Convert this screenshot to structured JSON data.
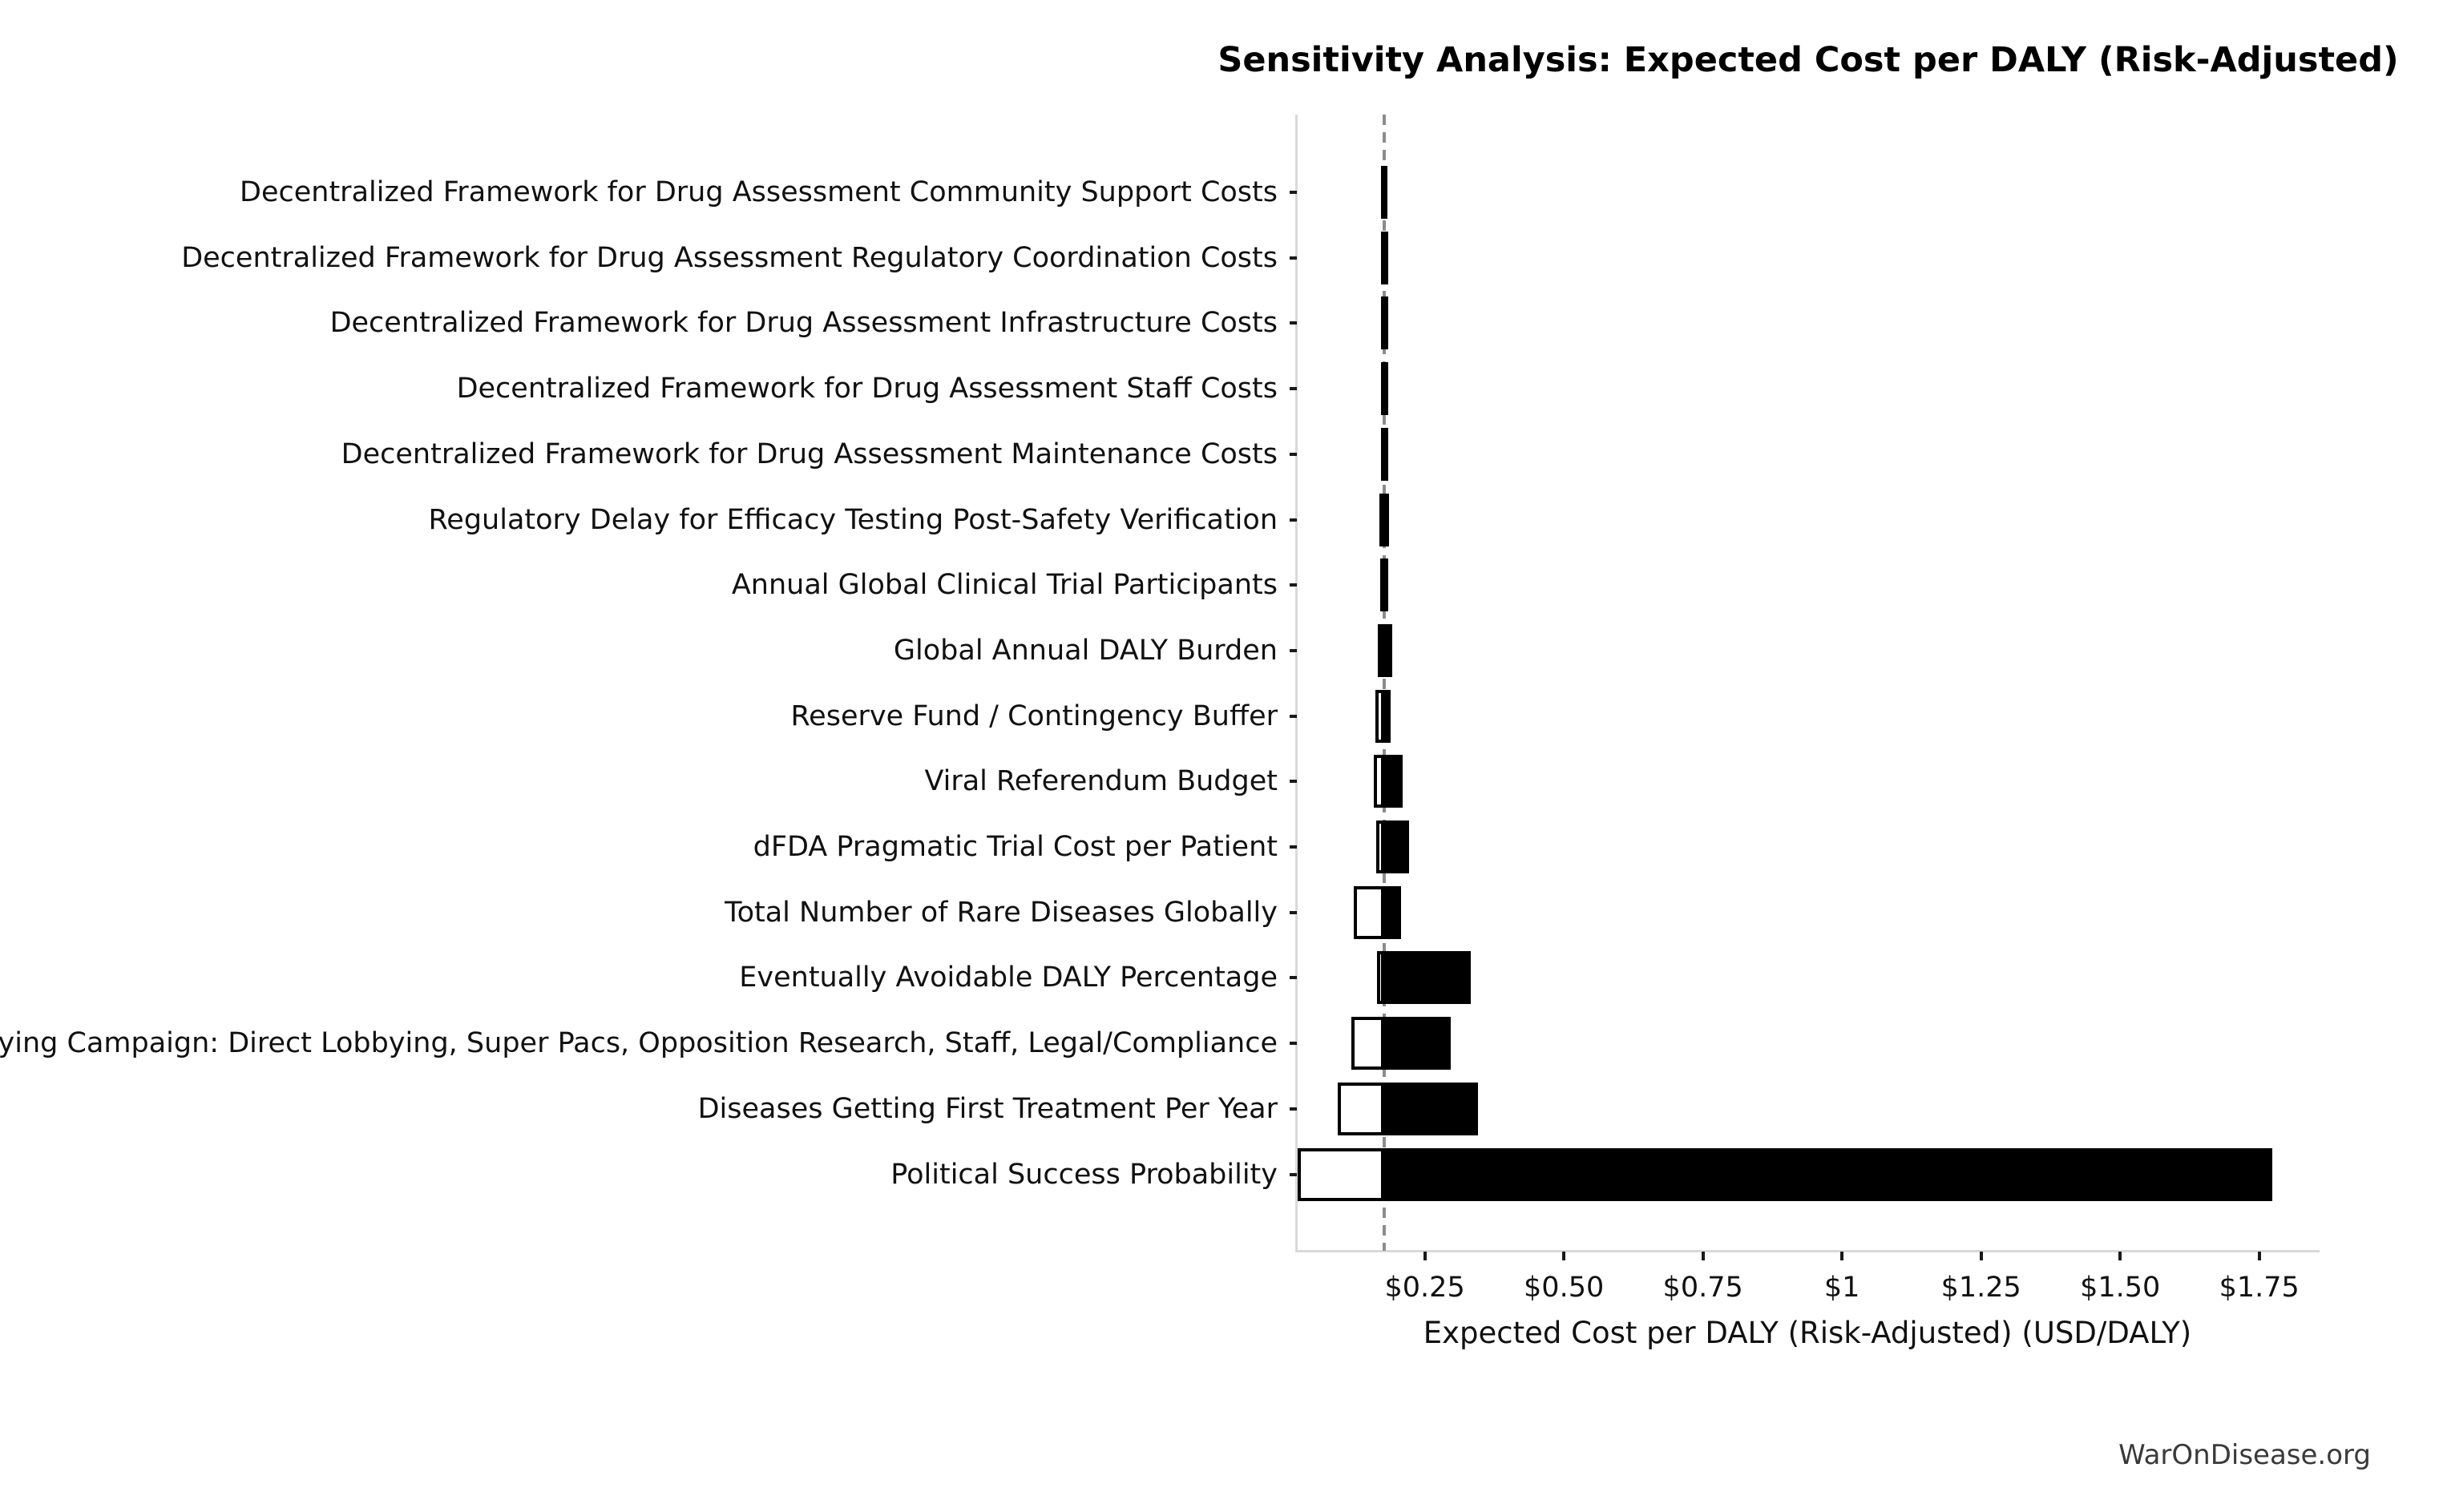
{
  "title": "Sensitivity Analysis: Expected Cost per DALY (Risk-Adjusted)",
  "footer": "WarOnDisease.org",
  "colors": {
    "background": "#ffffff",
    "high_bar": "#000000",
    "low_bar_fill": "#ffffff",
    "bar_edge": "#000000",
    "baseline_line": "#8c8c8c",
    "spine": "#d9d9d9",
    "tick_mark": "#1a1a1a",
    "text": "#111111",
    "footer_text": "#3a3a3a"
  },
  "chart_data": {
    "type": "bar",
    "subtype": "tornado-sensitivity",
    "orientation": "horizontal",
    "title": "Sensitivity Analysis: Expected Cost per DALY (Risk-Adjusted)",
    "xlabel": "Expected Cost per DALY (Risk-Adjusted) (USD/DALY)",
    "ylabel": "",
    "grid": false,
    "legend": false,
    "xlim": [
      0.02,
      1.857
    ],
    "baseline_value": 0.1775,
    "x_ticks": [
      {
        "value": 0.25,
        "label": "$0.25"
      },
      {
        "value": 0.5,
        "label": "$0.50"
      },
      {
        "value": 0.75,
        "label": "$0.75"
      },
      {
        "value": 1.0,
        "label": "$1"
      },
      {
        "value": 1.25,
        "label": "$1.25"
      },
      {
        "value": 1.5,
        "label": "$1.50"
      },
      {
        "value": 1.75,
        "label": "$1.75"
      }
    ],
    "rows": [
      {
        "label": "Decentralized Framework for Drug Assessment Community Support Costs",
        "low": 0.1715,
        "high": 0.1835
      },
      {
        "label": "Decentralized Framework for Drug Assessment Regulatory Coordination Costs",
        "low": 0.1713,
        "high": 0.1837
      },
      {
        "label": "Decentralized Framework for Drug Assessment Infrastructure Costs",
        "low": 0.1712,
        "high": 0.1838
      },
      {
        "label": "Decentralized Framework for Drug Assessment Staff Costs",
        "low": 0.171,
        "high": 0.184
      },
      {
        "label": "Decentralized Framework for Drug Assessment Maintenance Costs",
        "low": 0.1708,
        "high": 0.1842
      },
      {
        "label": "Regulatory Delay for Efficacy Testing Post-Safety Verification",
        "low": 0.169,
        "high": 0.186
      },
      {
        "label": "Annual Global Clinical Trial Participants",
        "low": 0.17,
        "high": 0.1845
      },
      {
        "label": "Global Annual DALY Burden",
        "low": 0.165,
        "high": 0.191
      },
      {
        "label": "Reserve Fund / Contingency Buffer",
        "low": 0.161,
        "high": 0.189
      },
      {
        "label": "Viral Referendum Budget",
        "low": 0.158,
        "high": 0.21
      },
      {
        "label": "dFDA Pragmatic Trial Cost per Patient",
        "low": 0.163,
        "high": 0.222
      },
      {
        "label": "Total Number of Rare Diseases Globally",
        "low": 0.122,
        "high": 0.208
      },
      {
        "label": "Eventually Avoidable DALY Percentage",
        "low": 0.164,
        "high": 0.332
      },
      {
        "label": "Political Lobbying Campaign: Direct Lobbying, Super Pacs, Opposition Research, Staff, Legal/Compliance",
        "low": 0.118,
        "high": 0.296
      },
      {
        "label": "Diseases Getting First Treatment Per Year",
        "low": 0.093,
        "high": 0.346
      },
      {
        "label": "Political Success Probability",
        "low": 0.021,
        "high": 1.773
      }
    ]
  }
}
